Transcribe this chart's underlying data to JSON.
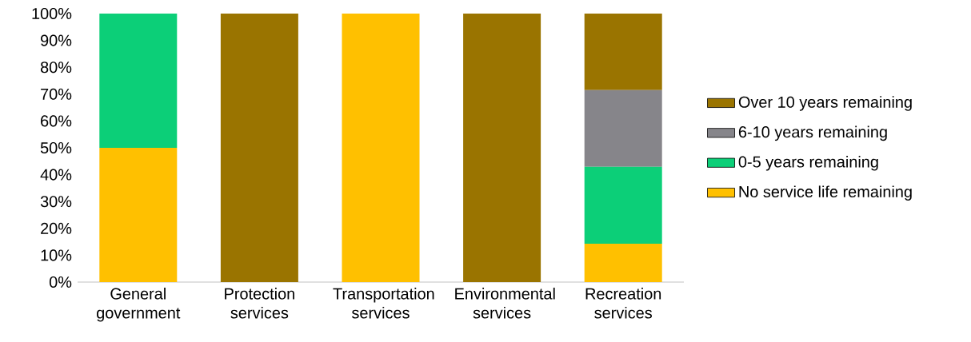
{
  "chart_data": {
    "type": "bar",
    "stacked": true,
    "categories": [
      "General government",
      "Protection services",
      "Transportation services",
      "Environmental services",
      "Recreation services"
    ],
    "series": [
      {
        "name": "No service life remaining",
        "color": "#ffc000",
        "values": [
          50,
          0,
          100,
          0,
          14.3
        ]
      },
      {
        "name": "0-5 years remaining",
        "color": "#0ccf78",
        "values": [
          50,
          0,
          0,
          0,
          28.6
        ]
      },
      {
        "name": "6-10 years remaining",
        "color": "#86858a",
        "values": [
          0,
          0,
          0,
          0,
          28.6
        ]
      },
      {
        "name": "Over 10 years remaining",
        "color": "#9a7400",
        "values": [
          0,
          100,
          0,
          100,
          28.5
        ]
      }
    ],
    "ylim": [
      0,
      100
    ],
    "yticks": [
      {
        "value": 0,
        "label": "0%"
      },
      {
        "value": 10,
        "label": "10%"
      },
      {
        "value": 20,
        "label": "20%"
      },
      {
        "value": 30,
        "label": "30%"
      },
      {
        "value": 40,
        "label": "40%"
      },
      {
        "value": 50,
        "label": "50%"
      },
      {
        "value": 60,
        "label": "60%"
      },
      {
        "value": 70,
        "label": "70%"
      },
      {
        "value": 80,
        "label": "80%"
      },
      {
        "value": 90,
        "label": "90%"
      },
      {
        "value": 100,
        "label": "100%"
      }
    ],
    "legend": "right",
    "grid": false
  }
}
